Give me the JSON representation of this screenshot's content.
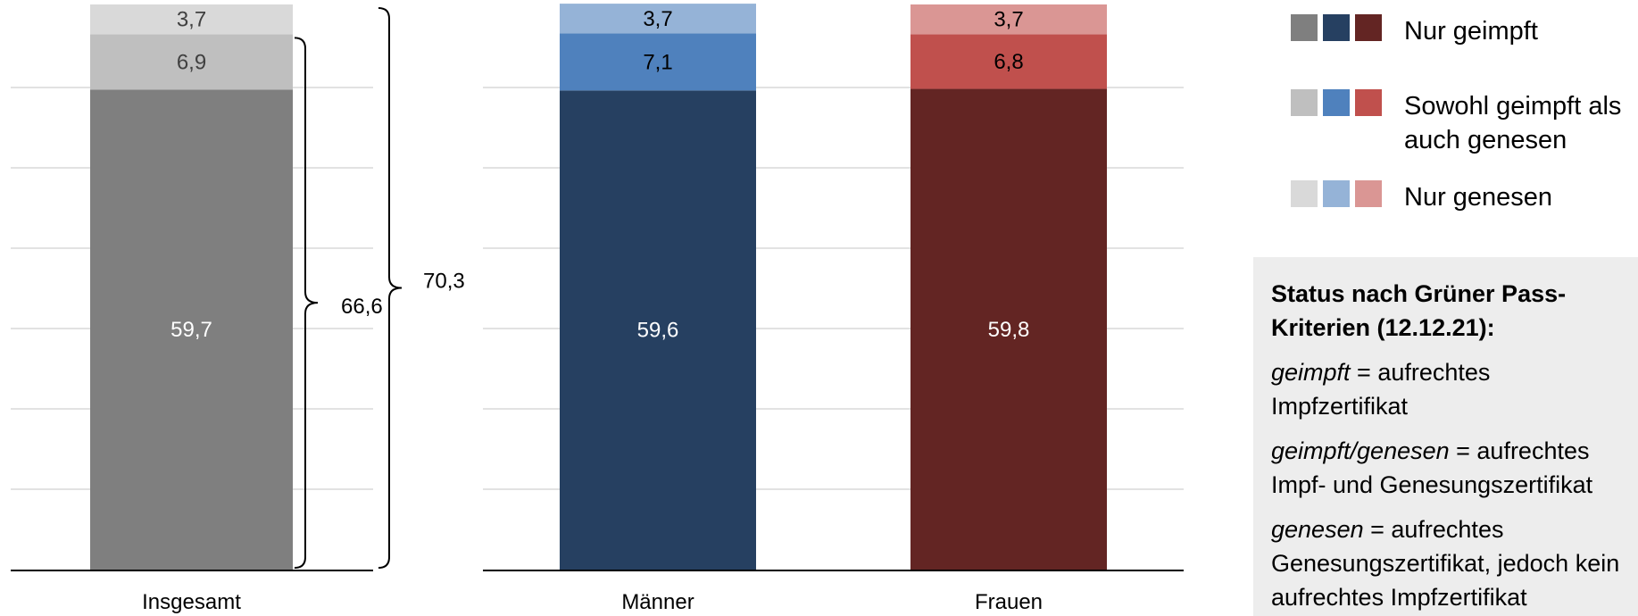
{
  "chart_data": {
    "type": "bar",
    "stacked": true,
    "grid": true,
    "panels": [
      {
        "categories": [
          "Insgesamt"
        ],
        "series": [
          {
            "name": "Nur geimpft",
            "values": [
              59.7
            ],
            "labels": [
              "59,7"
            ],
            "colors": [
              "#7f7f7f"
            ],
            "label_colors": [
              "#ffffff"
            ]
          },
          {
            "name": "Sowohl geimpft als auch genesen",
            "values": [
              6.9
            ],
            "labels": [
              "6,9"
            ],
            "colors": [
              "#bfbfbf"
            ],
            "label_colors": [
              "#404040"
            ]
          },
          {
            "name": "Nur genesen",
            "values": [
              3.7
            ],
            "labels": [
              "3,7"
            ],
            "colors": [
              "#d9d9d9"
            ],
            "label_colors": [
              "#404040"
            ]
          }
        ],
        "braces": [
          {
            "label": "66,6",
            "from": 0,
            "to": 66.6
          },
          {
            "label": "70,3",
            "from": 0,
            "to": 70.3
          }
        ]
      },
      {
        "categories": [
          "Männer",
          "Frauen"
        ],
        "series": [
          {
            "name": "Nur geimpft",
            "values": [
              59.6,
              59.8
            ],
            "labels": [
              "59,6",
              "59,8"
            ],
            "colors": [
              "#264061",
              "#632523"
            ],
            "label_colors": [
              "#ffffff",
              "#ffffff"
            ]
          },
          {
            "name": "Sowohl geimpft als auch genesen",
            "values": [
              7.1,
              6.8
            ],
            "labels": [
              "7,1",
              "6,8"
            ],
            "colors": [
              "#4f81bd",
              "#c0504d"
            ],
            "label_colors": [
              "#000000",
              "#000000"
            ]
          },
          {
            "name": "Nur genesen",
            "values": [
              3.7,
              3.7
            ],
            "labels": [
              "3,7",
              "3,7"
            ],
            "colors": [
              "#95b3d7",
              "#da9694"
            ],
            "label_colors": [
              "#000000",
              "#000000"
            ]
          }
        ]
      }
    ]
  },
  "legend": [
    {
      "label": "Nur geimpft",
      "colors": [
        "#7f7f7f",
        "#264061",
        "#632523"
      ]
    },
    {
      "label": "Sowohl geimpft als auch genesen",
      "colors": [
        "#bfbfbf",
        "#4f81bd",
        "#c0504d"
      ]
    },
    {
      "label": "Nur genesen",
      "colors": [
        "#d9d9d9",
        "#95b3d7",
        "#da9694"
      ]
    }
  ],
  "status_box": {
    "title": "Status nach Grüner Pass-Kriterien (12.12.21):",
    "definitions": [
      {
        "term": "geimpft",
        "text": " = aufrechtes Impfzertifikat"
      },
      {
        "term": "geimpft/genesen",
        "text": " = aufrechtes Impf- und Genesungszertifikat"
      },
      {
        "term": "genesen",
        "text": " = aufrechtes Genesungszertifikat, jedoch kein aufrechtes Impfzertifikat"
      }
    ]
  }
}
